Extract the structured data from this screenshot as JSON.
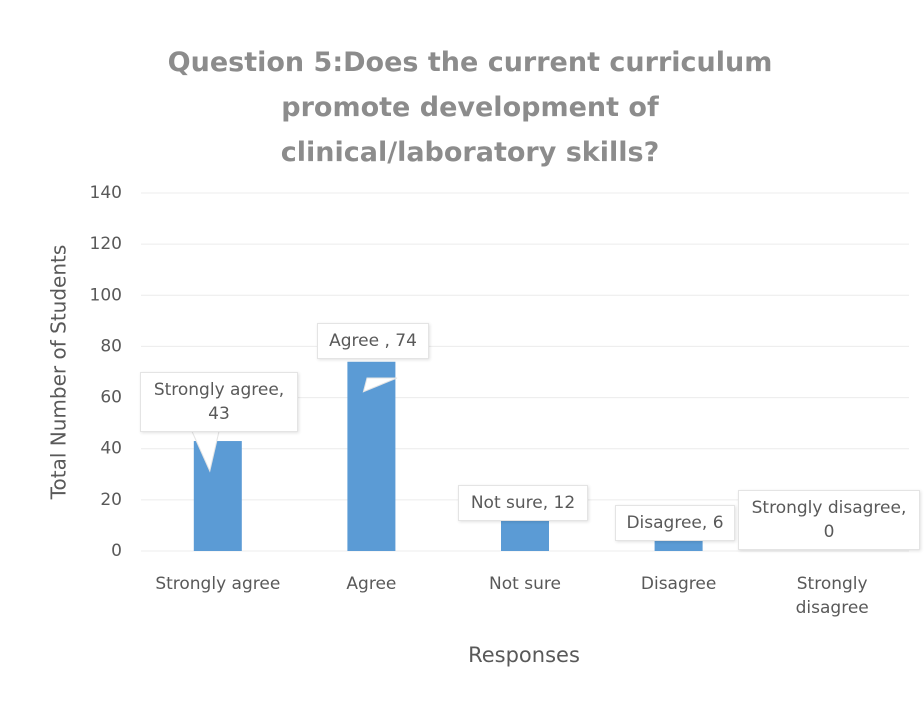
{
  "chart_data": {
    "type": "bar",
    "title": "Question 5:Does the current curriculum promote development of clinical/laboratory skills?",
    "categories": [
      "Strongly agree",
      "Agree",
      "Not sure",
      "Disagree",
      "Strongly disagree"
    ],
    "values": [
      43,
      74,
      12,
      6,
      0
    ],
    "value_labels": [
      "Strongly agree, 43",
      "Agree , 74",
      "Not sure, 12",
      "Disagree, 6",
      "Strongly disagree, 0"
    ],
    "color": "#5b9bd5",
    "xlabel": "Responses",
    "ylabel": "Total Number of Students",
    "ylim": [
      0,
      140
    ],
    "yticks": [
      0,
      20,
      40,
      60,
      80,
      100,
      120,
      140
    ],
    "grid": true
  }
}
